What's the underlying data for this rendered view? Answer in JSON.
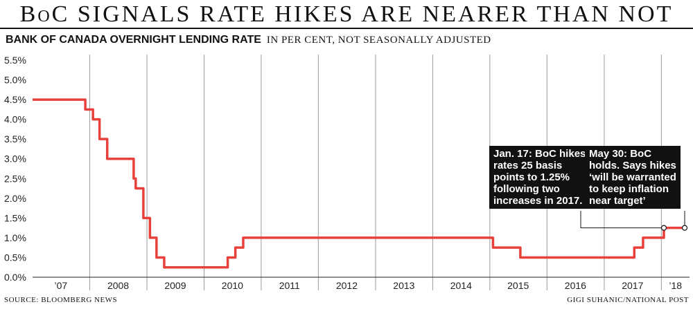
{
  "header": {
    "headline": "BoC SIGNALS RATE HIKES ARE NEARER THAN NOT",
    "subtitle": "BANK OF CANADA OVERNIGHT LENDING RATE",
    "unit_note": "IN PER CENT, NOT SEASONALLY ADJUSTED"
  },
  "footer": {
    "source": "SOURCE: BLOOMBERG NEWS",
    "credit": "GIGI SUHANIC/NATIONAL POST"
  },
  "colors": {
    "line": "#e8413c",
    "grid": "#9a9a9a",
    "annotation_bg": "#111111"
  },
  "annotations": [
    {
      "text": "Jan. 17: BoC hikes\nrates 25 basis\npoints to 1.25%\nfollowing two\nincreases in 2017.",
      "date": "2018-01-17",
      "value": 1.25
    },
    {
      "text": "May 30: BoC\nholds. Says hikes\n‘will be warranted\nto keep inflation\nnear target’",
      "date": "2018-05-30",
      "value": 1.25
    }
  ],
  "chart_data": {
    "type": "line",
    "title": "BANK OF CANADA OVERNIGHT LENDING RATE",
    "ylabel": "",
    "xlabel": "",
    "ylim": [
      0,
      5.5
    ],
    "xlim": [
      "2007-01-01",
      "2018-06-30"
    ],
    "grid": "vertical",
    "y_ticks": [
      "0.0%",
      "0.5%",
      "1.0%",
      "1.5%",
      "2.0%",
      "2.5%",
      "3.0%",
      "3.5%",
      "4.0%",
      "4.5%",
      "5.0%",
      "5.5%"
    ],
    "y_tick_values": [
      0,
      0.5,
      1,
      1.5,
      2,
      2.5,
      3,
      3.5,
      4,
      4.5,
      5,
      5.5
    ],
    "x_tick_labels": [
      "’07",
      "2008",
      "2009",
      "2010",
      "2011",
      "2012",
      "2013",
      "2014",
      "2015",
      "2016",
      "2017",
      "’18"
    ],
    "x_tick_dates": [
      "2007-07-01",
      "2008-07-01",
      "2009-07-01",
      "2010-07-01",
      "2011-07-01",
      "2012-07-01",
      "2013-07-01",
      "2014-07-01",
      "2015-07-01",
      "2016-07-01",
      "2017-07-01",
      "2018-04-01"
    ],
    "series": [
      {
        "name": "",
        "points": [
          [
            "2007-01-01",
            4.5
          ],
          [
            "2007-12-04",
            4.5
          ],
          [
            "2007-12-04",
            4.25
          ],
          [
            "2008-01-22",
            4.25
          ],
          [
            "2008-01-22",
            4.0
          ],
          [
            "2008-03-04",
            4.0
          ],
          [
            "2008-03-04",
            3.5
          ],
          [
            "2008-04-22",
            3.5
          ],
          [
            "2008-04-22",
            3.0
          ],
          [
            "2008-10-08",
            3.0
          ],
          [
            "2008-10-08",
            2.5
          ],
          [
            "2008-10-21",
            2.5
          ],
          [
            "2008-10-21",
            2.25
          ],
          [
            "2008-12-09",
            2.25
          ],
          [
            "2008-12-09",
            1.5
          ],
          [
            "2009-01-20",
            1.5
          ],
          [
            "2009-01-20",
            1.0
          ],
          [
            "2009-03-03",
            1.0
          ],
          [
            "2009-03-03",
            0.5
          ],
          [
            "2009-04-21",
            0.5
          ],
          [
            "2009-04-21",
            0.25
          ],
          [
            "2010-06-01",
            0.25
          ],
          [
            "2010-06-01",
            0.5
          ],
          [
            "2010-07-20",
            0.5
          ],
          [
            "2010-07-20",
            0.75
          ],
          [
            "2010-09-08",
            0.75
          ],
          [
            "2010-09-08",
            1.0
          ],
          [
            "2015-01-21",
            1.0
          ],
          [
            "2015-01-21",
            0.75
          ],
          [
            "2015-07-15",
            0.75
          ],
          [
            "2015-07-15",
            0.5
          ],
          [
            "2017-07-12",
            0.5
          ],
          [
            "2017-07-12",
            0.75
          ],
          [
            "2017-09-06",
            0.75
          ],
          [
            "2017-09-06",
            1.0
          ],
          [
            "2018-01-17",
            1.0
          ],
          [
            "2018-01-17",
            1.25
          ],
          [
            "2018-06-15",
            1.25
          ]
        ]
      }
    ]
  }
}
